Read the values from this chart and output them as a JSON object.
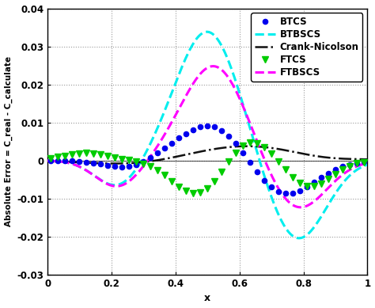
{
  "title": "",
  "xlabel": "x",
  "ylabel": "Absolute Error = C_real - C_calculate",
  "xlim": [
    0,
    1
  ],
  "ylim": [
    -0.03,
    0.04
  ],
  "yticks": [
    -0.03,
    -0.02,
    -0.01,
    0,
    0.01,
    0.02,
    0.03,
    0.04
  ],
  "xticks": [
    0,
    0.2,
    0.4,
    0.6,
    0.8,
    1.0
  ],
  "series": [
    {
      "label": "BTCS",
      "color": "#0000EE",
      "linestyle": "None",
      "marker": "o",
      "markersize": 4.5,
      "linewidth": 0
    },
    {
      "label": "BTBSCS",
      "color": "#00EEEE",
      "linestyle": "dashed",
      "marker": "",
      "markersize": 0,
      "linewidth": 2.2
    },
    {
      "label": "Crank-Nicolson",
      "color": "#111111",
      "linestyle": "dashdot",
      "marker": "",
      "markersize": 0,
      "linewidth": 1.8
    },
    {
      "label": "FTCS",
      "color": "#00CC00",
      "linestyle": "None",
      "marker": "v",
      "markersize": 6,
      "linewidth": 0
    },
    {
      "label": "FTBSCS",
      "color": "#FF00FF",
      "linestyle": "dashed",
      "marker": "",
      "markersize": 0,
      "linewidth": 2.2
    }
  ],
  "background_color": "#FFFFFF",
  "grid_color": "#999999",
  "legend_fontsize": 8.5,
  "axis_label_fontsize": 9,
  "tick_fontsize": 8.5
}
